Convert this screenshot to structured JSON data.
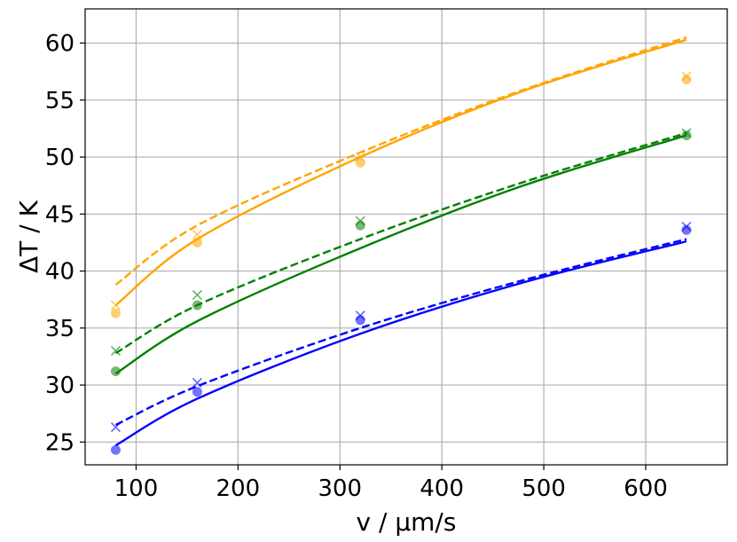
{
  "chart_data": {
    "type": "scatter",
    "title": "",
    "xlabel": "v / µm/s",
    "ylabel": "ΔT / K",
    "xlim": [
      50,
      680
    ],
    "ylim": [
      23,
      63
    ],
    "xticks": [
      100,
      200,
      300,
      400,
      500,
      600
    ],
    "yticks": [
      25,
      30,
      35,
      40,
      45,
      50,
      55,
      60
    ],
    "grid": true,
    "series": [
      {
        "color": "#ffa500",
        "circles": {
          "x": [
            80,
            160,
            320,
            640
          ],
          "y": [
            36.3,
            42.5,
            49.5,
            56.8
          ]
        },
        "crosses": {
          "x": [
            80,
            160,
            320,
            640
          ],
          "y": [
            37.0,
            43.2,
            50.0,
            57.1
          ]
        },
        "fit_solid": {
          "x": [
            80,
            160,
            320,
            480,
            640
          ],
          "y": [
            37.0,
            42.8,
            50.0,
            55.8,
            60.3
          ]
        },
        "fit_dashed": {
          "x": [
            80,
            160,
            320,
            480,
            640
          ],
          "y": [
            38.8,
            44.0,
            50.4,
            55.9,
            60.5
          ]
        }
      },
      {
        "color": "#008000",
        "circles": {
          "x": [
            80,
            160,
            320,
            640
          ],
          "y": [
            31.2,
            37.0,
            44.0,
            51.9
          ]
        },
        "crosses": {
          "x": [
            80,
            160,
            320,
            640
          ],
          "y": [
            33.0,
            37.9,
            44.4,
            52.1
          ]
        },
        "fit_solid": {
          "x": [
            80,
            160,
            320,
            480,
            640
          ],
          "y": [
            31.0,
            35.6,
            42.0,
            47.5,
            51.9
          ]
        },
        "fit_dashed": {
          "x": [
            80,
            160,
            320,
            480,
            640
          ],
          "y": [
            32.8,
            37.0,
            42.8,
            47.8,
            52.1
          ]
        }
      },
      {
        "color": "#0000ff",
        "circles": {
          "x": [
            80,
            160,
            320,
            640
          ],
          "y": [
            24.3,
            29.4,
            35.7,
            43.6
          ]
        },
        "crosses": {
          "x": [
            80,
            160,
            320,
            640
          ],
          "y": [
            26.3,
            30.2,
            36.1,
            43.9
          ]
        },
        "fit_solid": {
          "x": [
            80,
            160,
            320,
            480,
            640
          ],
          "y": [
            24.7,
            28.8,
            34.5,
            39.0,
            42.6
          ]
        },
        "fit_dashed": {
          "x": [
            80,
            160,
            320,
            480,
            640
          ],
          "y": [
            26.5,
            29.9,
            35.0,
            39.2,
            42.8
          ]
        }
      }
    ]
  }
}
